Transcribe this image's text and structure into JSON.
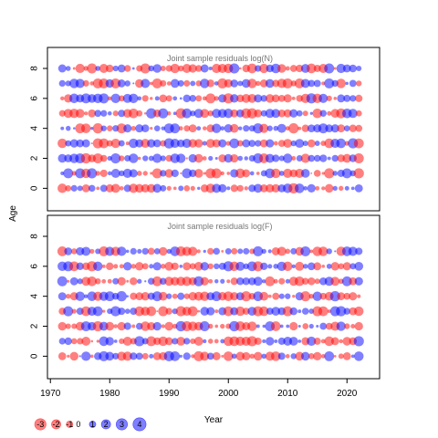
{
  "chart_data": {
    "type": "scatter",
    "subtype": "bubble-residuals",
    "xlabel": "Year",
    "ylabel": "Age",
    "xlim": [
      1969.5,
      2025.5
    ],
    "ylim": [
      -1.5,
      9.4
    ],
    "x_ticks": [
      1970,
      1980,
      1990,
      2000,
      2010,
      2020
    ],
    "y_ticks": [
      0,
      2,
      4,
      6,
      8
    ],
    "years": [
      1972,
      2022
    ],
    "ages": [
      0,
      1,
      2,
      3,
      4,
      5,
      6,
      7,
      8
    ],
    "positive_color": "#0000ff",
    "negative_color": "#ff0000",
    "panels": [
      {
        "title": "Joint sample residuals log(N)",
        "seed": 17
      },
      {
        "title": "Joint sample residuals log(F)",
        "seed": 91,
        "ages": [
          0,
          1,
          2,
          3,
          4,
          5,
          6,
          7
        ]
      }
    ],
    "legend": {
      "placement": "bottom-left",
      "values": [
        -3,
        -2,
        -1,
        0,
        1,
        2,
        3,
        4
      ],
      "labels": [
        "-3",
        "-2",
        "-1",
        "0",
        "1",
        "2",
        "3",
        "4"
      ]
    }
  }
}
